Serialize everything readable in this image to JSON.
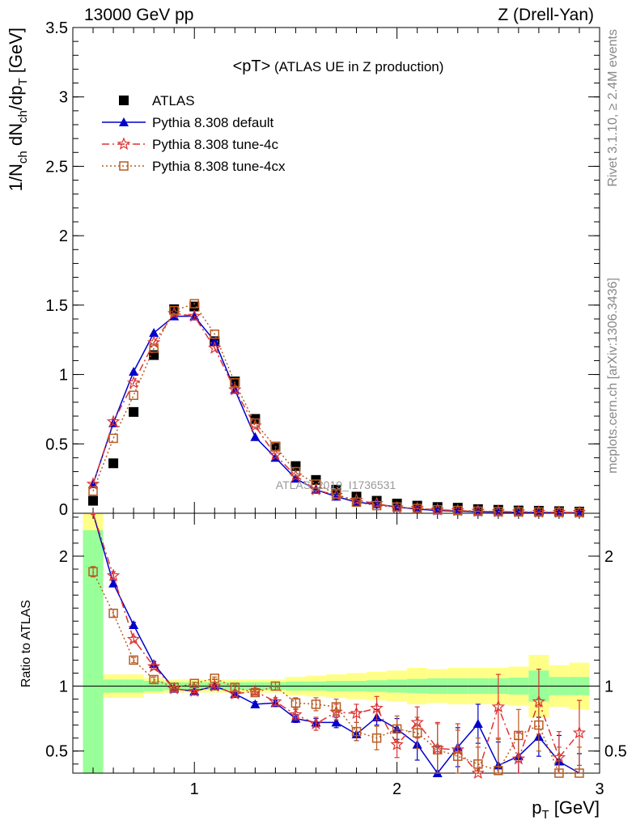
{
  "header": {
    "left": "13000 GeV pp",
    "right": "Z (Drell-Yan)"
  },
  "side_text": {
    "rivet": "Rivet 3.1.10, ≥ 2.4M events",
    "mcplots": "mcplots.cern.ch [arXiv:1306.3436]"
  },
  "chart_data": [
    {
      "type": "scatter",
      "title": "<pT> (ATLAS UE in Z production)",
      "analysis_label": "ATLAS_2019_I1736531",
      "xlabel": "p_T [GeV]",
      "ylabel": "1/N_ch dN_ch/dp_T [GeV]",
      "xlim": [
        0.4,
        3.0
      ],
      "ylim": [
        0,
        3.5
      ],
      "y_ticks": [
        "0",
        "0.5",
        "1",
        "1.5",
        "2",
        "2.5",
        "3",
        "3.5"
      ],
      "legend_position": "top-left",
      "x": [
        0.5,
        0.6,
        0.7,
        0.8,
        0.9,
        1.0,
        1.1,
        1.2,
        1.3,
        1.4,
        1.5,
        1.6,
        1.7,
        1.8,
        1.9,
        2.0,
        2.1,
        2.2,
        2.3,
        2.4,
        2.5,
        2.6,
        2.7,
        2.8,
        2.9
      ],
      "series": [
        {
          "name": "ATLAS",
          "color": "#000000",
          "marker": "square",
          "values": [
            0.09,
            0.36,
            0.73,
            1.14,
            1.47,
            1.49,
            1.24,
            0.95,
            0.68,
            0.48,
            0.34,
            0.24,
            0.17,
            0.12,
            0.09,
            0.07,
            0.055,
            0.045,
            0.04,
            0.03,
            0.025,
            0.02,
            0.018,
            0.015,
            0.012
          ]
        },
        {
          "name": "Pythia 8.308 default",
          "color": "#0000cc",
          "marker": "triangle",
          "dash": "",
          "values": [
            0.21,
            0.65,
            1.02,
            1.3,
            1.42,
            1.42,
            1.24,
            0.89,
            0.55,
            0.4,
            0.25,
            0.17,
            0.12,
            0.08,
            0.065,
            0.045,
            0.03,
            0.02,
            0.015,
            0.01,
            0.008,
            0.006,
            0.005,
            0.004,
            0.003
          ]
        },
        {
          "name": "Pythia 8.308 tune-4c",
          "color": "#dd3333",
          "marker": "star",
          "dash": "9,4,2,4",
          "values": [
            0.21,
            0.66,
            0.94,
            1.23,
            1.44,
            1.42,
            1.19,
            0.89,
            0.63,
            0.42,
            0.27,
            0.17,
            0.13,
            0.095,
            0.07,
            0.04,
            0.035,
            0.025,
            0.02,
            0.015,
            0.012,
            0.01,
            0.008,
            0.007,
            0.006
          ]
        },
        {
          "name": "Pythia 8.308 tune-4cx",
          "color": "#b85c22",
          "marker": "opensquare",
          "dash": "2,3",
          "values": [
            0.16,
            0.54,
            0.85,
            1.19,
            1.46,
            1.51,
            1.29,
            0.94,
            0.65,
            0.48,
            0.3,
            0.21,
            0.14,
            0.08,
            0.055,
            0.045,
            0.035,
            0.025,
            0.02,
            0.015,
            0.012,
            0.01,
            0.009,
            0.007,
            0.006
          ]
        }
      ]
    },
    {
      "type": "scatter",
      "ylabel": "Ratio to ATLAS",
      "xlabel": "p_T [GeV]",
      "xlim": [
        0.4,
        3.0
      ],
      "ylim": [
        0.33,
        2.33
      ],
      "x_ticks": [
        "1",
        "2",
        "3"
      ],
      "y_ticks": [
        "0.5",
        "1",
        "2"
      ],
      "x": [
        0.5,
        0.6,
        0.7,
        0.8,
        0.9,
        1.0,
        1.1,
        1.2,
        1.3,
        1.4,
        1.5,
        1.6,
        1.7,
        1.8,
        1.9,
        2.0,
        2.1,
        2.2,
        2.3,
        2.4,
        2.5,
        2.6,
        2.7,
        2.8,
        2.9
      ],
      "bands": {
        "stat_color": "#99ff99",
        "total_color": "#ffff88",
        "stat_half_width": [
          1.2,
          0.05,
          0.05,
          0.04,
          0.03,
          0.03,
          0.03,
          0.03,
          0.03,
          0.03,
          0.035,
          0.035,
          0.04,
          0.04,
          0.045,
          0.05,
          0.055,
          0.06,
          0.06,
          0.06,
          0.06,
          0.065,
          0.12,
          0.07,
          0.07
        ],
        "total_half_width": [
          1.9,
          0.09,
          0.09,
          0.06,
          0.05,
          0.05,
          0.05,
          0.05,
          0.05,
          0.05,
          0.07,
          0.08,
          0.09,
          0.1,
          0.11,
          0.12,
          0.14,
          0.13,
          0.14,
          0.14,
          0.14,
          0.15,
          0.24,
          0.16,
          0.18
        ]
      },
      "series": [
        {
          "name": "Pythia 8.308 default",
          "color": "#0000cc",
          "marker": "triangle",
          "dash": "",
          "values": [
            2.4,
            1.79,
            1.47,
            1.17,
            0.98,
            0.96,
            1.0,
            0.94,
            0.86,
            0.87,
            0.75,
            0.72,
            0.72,
            0.63,
            0.76,
            0.67,
            0.55,
            0.33,
            0.53,
            0.71,
            0.39,
            0.46,
            0.61,
            0.42,
            0.28
          ],
          "errors": [
            0.03,
            0.02,
            0.02,
            0.02,
            0.01,
            0.01,
            0.01,
            0.01,
            0.02,
            0.02,
            0.03,
            0.03,
            0.04,
            0.05,
            0.06,
            0.08,
            0.12,
            0.2,
            0.15,
            0.15,
            0.18,
            0.18,
            0.15,
            0.2,
            0.2
          ]
        },
        {
          "name": "Pythia 8.308 tune-4c",
          "color": "#dd3333",
          "marker": "star",
          "dash": "9,4,2,4",
          "values": [
            2.36,
            1.85,
            1.36,
            1.15,
            0.98,
            0.96,
            1.0,
            0.94,
            0.96,
            0.88,
            0.78,
            0.71,
            0.8,
            0.79,
            0.83,
            0.55,
            0.72,
            0.52,
            0.51,
            0.33,
            0.84,
            0.44,
            0.88,
            0.45,
            0.64
          ],
          "errors": [
            0.04,
            0.03,
            0.02,
            0.02,
            0.01,
            0.01,
            0.01,
            0.02,
            0.02,
            0.03,
            0.04,
            0.05,
            0.06,
            0.07,
            0.09,
            0.1,
            0.12,
            0.2,
            0.2,
            0.2,
            0.25,
            0.2,
            0.25,
            0.2,
            0.25
          ]
        },
        {
          "name": "Pythia 8.308 tune-4cx",
          "color": "#b85c22",
          "marker": "opensquare",
          "dash": "2,3",
          "values": [
            1.88,
            1.56,
            1.2,
            1.05,
            0.99,
            1.02,
            1.06,
            0.99,
            0.95,
            1.0,
            0.87,
            0.86,
            0.84,
            0.65,
            0.6,
            0.67,
            0.64,
            0.51,
            0.46,
            0.4,
            0.35,
            0.62,
            0.7,
            0.33,
            0.33
          ],
          "errors": [
            0.04,
            0.03,
            0.02,
            0.02,
            0.01,
            0.01,
            0.01,
            0.02,
            0.02,
            0.03,
            0.04,
            0.05,
            0.06,
            0.07,
            0.09,
            0.1,
            0.12,
            0.2,
            0.2,
            0.2,
            0.25,
            0.2,
            0.2,
            0.2,
            0.2
          ]
        }
      ]
    }
  ]
}
